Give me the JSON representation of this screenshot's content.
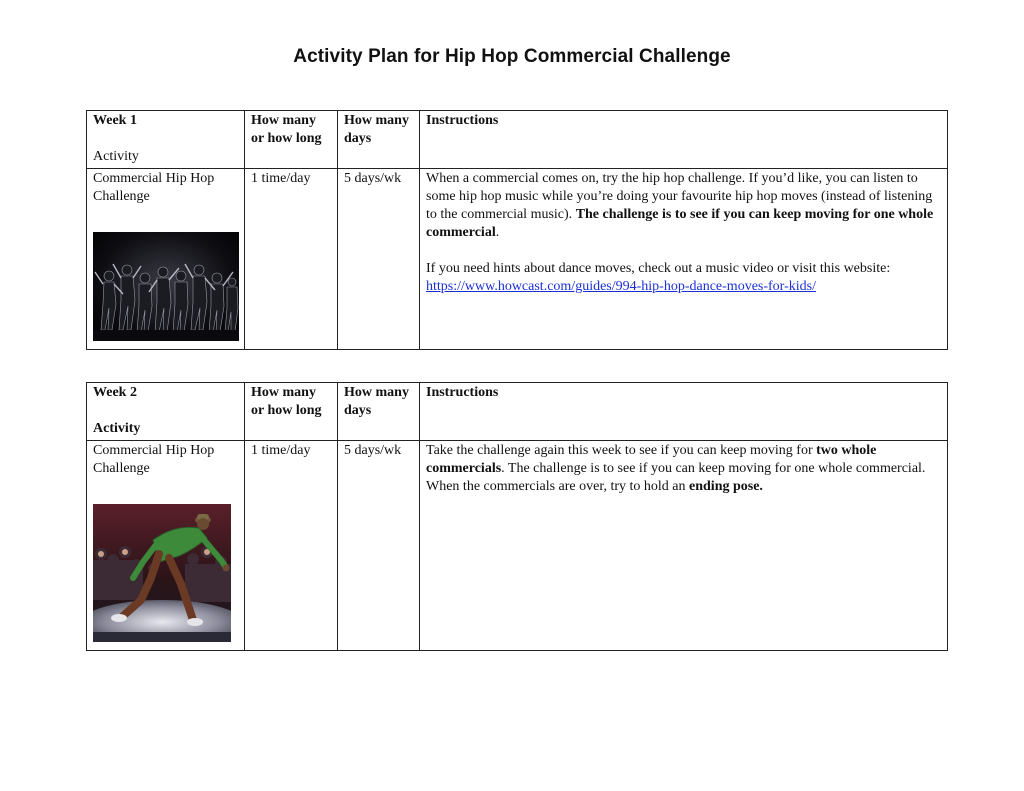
{
  "title": "Activity Plan for Hip Hop Commercial Challenge",
  "weeks": [
    {
      "week_label": "Week 1",
      "headers": {
        "activity": "Activity",
        "how_many": "How many or how long",
        "days": "How many days",
        "instructions": "Instructions"
      },
      "activity": "Commercial Hip Hop Challenge",
      "how_many": "1 time/day",
      "days": "5 days/wk",
      "instructions": {
        "p1_plain": "When a commercial comes on, try the hip hop challenge. If you’d like, you can listen to some hip hop music while you’re doing your favourite hip hop moves (instead of listening to the commercial music). ",
        "p1_bold": "The challenge is to see if you can keep moving for one whole commercial",
        "p1_end": ".",
        "p2_plain": "If you need hints about dance moves, check out a music video or visit this website: ",
        "link": "https://www.howcast.com/guides/994-hip-hop-dance-moves-for-kids/"
      },
      "photo_icon": "dance-group-photo"
    },
    {
      "week_label": "Week 2",
      "headers": {
        "activity": "Activity",
        "how_many": "How many or how long",
        "days": "How many days",
        "instructions": "Instructions"
      },
      "activity": "Commercial Hip Hop Challenge",
      "how_many": "1 time/day",
      "days": "5 days/wk",
      "instructions": {
        "s1": "Take the challenge again this week to see if you can keep moving for ",
        "b1": "two whole commercials",
        "s2": ". The challenge is to see if you can keep moving for one whole commercial. When the commercials are over, try to hold an ",
        "b2": "ending pose."
      },
      "photo_icon": "breakdancer-photo"
    }
  ]
}
